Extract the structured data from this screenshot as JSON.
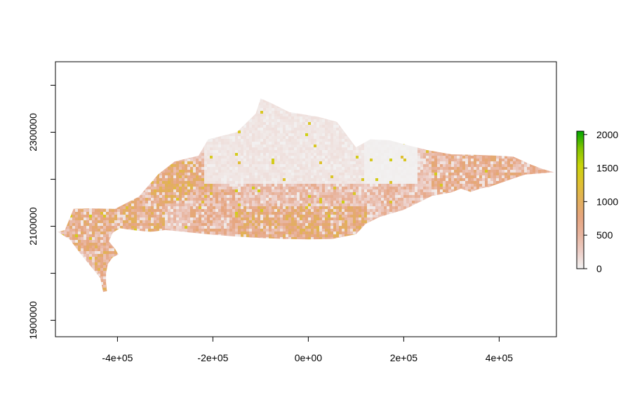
{
  "chart_data": {
    "type": "heatmap",
    "title": "",
    "xlabel": "",
    "ylabel": "",
    "xlim": [
      -530000,
      520000
    ],
    "ylim": [
      1865000,
      2450000
    ],
    "x_ticks": [
      {
        "value": -400000,
        "label": "-4e+05"
      },
      {
        "value": -200000,
        "label": "-2e+05"
      },
      {
        "value": 0,
        "label": "0e+00"
      },
      {
        "value": 200000,
        "label": "2e+05"
      },
      {
        "value": 400000,
        "label": "4e+05"
      }
    ],
    "y_ticks": [
      {
        "value": 1900000,
        "label": "1900000"
      },
      {
        "value": 2000000,
        "label": ""
      },
      {
        "value": 2100000,
        "label": "2100000"
      },
      {
        "value": 2200000,
        "label": ""
      },
      {
        "value": 2300000,
        "label": "2300000"
      },
      {
        "value": 2400000,
        "label": ""
      }
    ],
    "legend": {
      "position": "right",
      "min": 0,
      "max": 2050,
      "ticks": [
        {
          "value": 0,
          "label": "0"
        },
        {
          "value": 500,
          "label": "500"
        },
        {
          "value": 1000,
          "label": "1000"
        },
        {
          "value": 1500,
          "label": "1500"
        },
        {
          "value": 2000,
          "label": "2000"
        }
      ],
      "colors": [
        "#f2f2f2",
        "#eccdc6",
        "#e8b49e",
        "#e6a57f",
        "#e2b05a",
        "#dfc12f",
        "#c9d40a",
        "#82c400",
        "#00a600"
      ]
    },
    "color_scale": [
      {
        "value": 0,
        "color": "#f2f2f2"
      },
      {
        "value": 250,
        "color": "#eccdc6"
      },
      {
        "value": 400,
        "color": "#e8b49e"
      },
      {
        "value": 550,
        "color": "#e6a57f"
      },
      {
        "value": 750,
        "color": "#e2b05a"
      },
      {
        "value": 1000,
        "color": "#dfc12f"
      },
      {
        "value": 1250,
        "color": "#c9d40a"
      },
      {
        "value": 1600,
        "color": "#82c400"
      },
      {
        "value": 2050,
        "color": "#00a600"
      }
    ],
    "region_outline": [
      [
        -510000,
        2092000
      ],
      [
        -492000,
        2137000
      ],
      [
        -455000,
        2138000
      ],
      [
        -405000,
        2137000
      ],
      [
        -355000,
        2163000
      ],
      [
        -315000,
        2210000
      ],
      [
        -280000,
        2238000
      ],
      [
        -230000,
        2250000
      ],
      [
        -210000,
        2285000
      ],
      [
        -150000,
        2300000
      ],
      [
        -110000,
        2340000
      ],
      [
        -100000,
        2372000
      ],
      [
        -80000,
        2363000
      ],
      [
        -40000,
        2343000
      ],
      [
        20000,
        2333000
      ],
      [
        60000,
        2322000
      ],
      [
        100000,
        2268000
      ],
      [
        130000,
        2285000
      ],
      [
        170000,
        2283000
      ],
      [
        210000,
        2272000
      ],
      [
        250000,
        2262000
      ],
      [
        300000,
        2253000
      ],
      [
        350000,
        2252000
      ],
      [
        400000,
        2250000
      ],
      [
        430000,
        2248000
      ],
      [
        465000,
        2232000
      ],
      [
        490000,
        2222000
      ],
      [
        515000,
        2215000
      ],
      [
        495000,
        2213000
      ],
      [
        455000,
        2210000
      ],
      [
        425000,
        2200000
      ],
      [
        380000,
        2184000
      ],
      [
        360000,
        2180000
      ],
      [
        340000,
        2173000
      ],
      [
        320000,
        2180000
      ],
      [
        300000,
        2172000
      ],
      [
        260000,
        2165000
      ],
      [
        200000,
        2135000
      ],
      [
        150000,
        2120000
      ],
      [
        120000,
        2105000
      ],
      [
        100000,
        2083000
      ],
      [
        50000,
        2073000
      ],
      [
        0,
        2072000
      ],
      [
        -50000,
        2073000
      ],
      [
        -100000,
        2075000
      ],
      [
        -150000,
        2078000
      ],
      [
        -200000,
        2082000
      ],
      [
        -250000,
        2087000
      ],
      [
        -300000,
        2092000
      ],
      [
        -330000,
        2088000
      ],
      [
        -370000,
        2092000
      ],
      [
        -395000,
        2096000
      ],
      [
        -410000,
        2086000
      ],
      [
        -418000,
        2068000
      ],
      [
        -405000,
        2052000
      ],
      [
        -398000,
        2040000
      ],
      [
        -410000,
        2034000
      ],
      [
        -420000,
        2020000
      ],
      [
        -424000,
        2000000
      ],
      [
        -424000,
        1980000
      ],
      [
        -422000,
        1962000
      ],
      [
        -430000,
        1960000
      ],
      [
        -436000,
        1990000
      ],
      [
        -456000,
        2015000
      ],
      [
        -478000,
        2042000
      ],
      [
        -500000,
        2072000
      ],
      [
        -525000,
        2088000
      ]
    ],
    "value_zones": [
      {
        "x": [
          -530000,
          -420000
        ],
        "y": [
          2050000,
          2145000
        ],
        "value": 480
      },
      {
        "x": [
          -450000,
          -400000
        ],
        "y": [
          1960000,
          2060000
        ],
        "value": 560
      },
      {
        "x": [
          -420000,
          -300000
        ],
        "y": [
          2090000,
          2160000
        ],
        "value": 540
      },
      {
        "x": [
          -330000,
          -200000
        ],
        "y": [
          2150000,
          2240000
        ],
        "value": 600
      },
      {
        "x": [
          -250000,
          -140000
        ],
        "y": [
          2080000,
          2180000
        ],
        "value": 420
      },
      {
        "x": [
          -150000,
          120000
        ],
        "y": [
          2070000,
          2140000
        ],
        "value": 560
      },
      {
        "x": [
          -120000,
          100000
        ],
        "y": [
          2140000,
          2190000
        ],
        "value": 330
      },
      {
        "x": [
          -220000,
          120000
        ],
        "y": [
          2190000,
          2375000
        ],
        "value": 90
      },
      {
        "x": [
          120000,
          230000
        ],
        "y": [
          2190000,
          2290000
        ],
        "value": 20
      },
      {
        "x": [
          150000,
          260000
        ],
        "y": [
          2110000,
          2190000
        ],
        "value": 360
      },
      {
        "x": [
          260000,
          520000
        ],
        "y": [
          2160000,
          2260000
        ],
        "value": 440
      }
    ]
  }
}
